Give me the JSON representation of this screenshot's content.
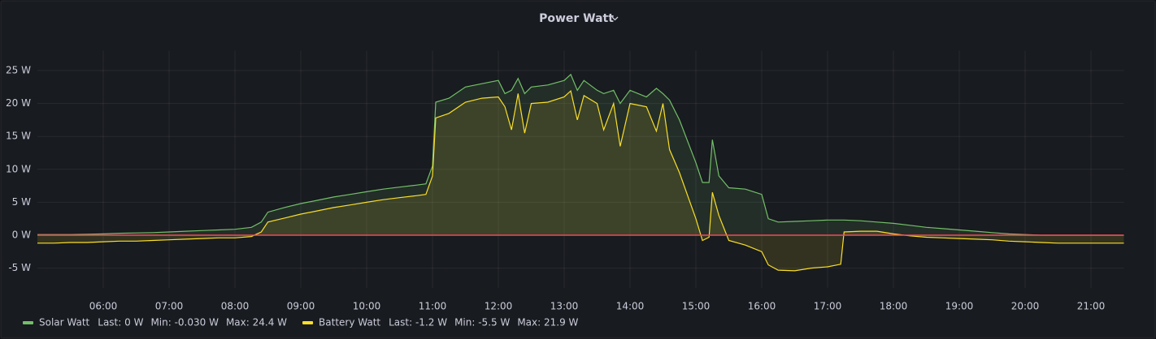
{
  "chart_data": {
    "type": "line",
    "title": "Power Watt",
    "x": [
      5.0,
      5.25,
      5.5,
      5.75,
      6.0,
      6.25,
      6.5,
      6.75,
      7.0,
      7.25,
      7.5,
      7.75,
      8.0,
      8.25,
      8.4,
      8.5,
      8.75,
      9.0,
      9.25,
      9.5,
      9.75,
      10.0,
      10.25,
      10.5,
      10.75,
      10.9,
      11.0,
      11.05,
      11.25,
      11.5,
      11.75,
      12.0,
      12.1,
      12.2,
      12.3,
      12.4,
      12.5,
      12.75,
      13.0,
      13.1,
      13.2,
      13.3,
      13.5,
      13.6,
      13.75,
      13.85,
      14.0,
      14.25,
      14.4,
      14.5,
      14.6,
      14.75,
      15.0,
      15.1,
      15.2,
      15.25,
      15.35,
      15.5,
      15.75,
      16.0,
      16.1,
      16.25,
      16.5,
      16.75,
      17.0,
      17.2,
      17.25,
      17.5,
      17.75,
      18.0,
      18.25,
      18.5,
      18.75,
      19.0,
      19.25,
      19.5,
      19.75,
      20.0,
      20.25,
      20.5,
      21.0,
      21.5
    ],
    "series": [
      {
        "name": "Solar Watt",
        "color": "#73bf69",
        "legend_stats": [
          "Last: 0 W",
          "Min: -0.030 W",
          "Max: 24.4 W"
        ],
        "values": [
          0.1,
          0.1,
          0.1,
          0.15,
          0.2,
          0.3,
          0.35,
          0.4,
          0.5,
          0.6,
          0.7,
          0.8,
          0.9,
          1.2,
          2.0,
          3.5,
          4.2,
          4.8,
          5.3,
          5.8,
          6.2,
          6.6,
          7.0,
          7.3,
          7.6,
          7.8,
          10.5,
          20.2,
          20.8,
          22.5,
          23.0,
          23.5,
          21.5,
          22.0,
          23.8,
          21.5,
          22.5,
          22.8,
          23.5,
          24.4,
          22.0,
          23.5,
          22.0,
          21.5,
          22.0,
          20.0,
          22.0,
          21.0,
          22.3,
          21.5,
          20.5,
          17.5,
          11.0,
          8.0,
          8.0,
          14.5,
          9.0,
          7.2,
          7.0,
          6.2,
          2.5,
          2.0,
          2.1,
          2.2,
          2.3,
          2.3,
          2.3,
          2.2,
          2.0,
          1.8,
          1.5,
          1.2,
          1.0,
          0.8,
          0.6,
          0.4,
          0.2,
          0.1,
          0.0,
          0.0,
          0.0,
          0.0
        ]
      },
      {
        "name": "Battery Watt",
        "color": "#fade2a",
        "legend_stats": [
          "Last: -1.2 W",
          "Min: -5.5 W",
          "Max: 21.9 W"
        ],
        "values": [
          -1.2,
          -1.2,
          -1.1,
          -1.1,
          -1.0,
          -0.9,
          -0.9,
          -0.8,
          -0.7,
          -0.6,
          -0.5,
          -0.4,
          -0.4,
          -0.2,
          0.5,
          2.0,
          2.6,
          3.2,
          3.7,
          4.2,
          4.6,
          5.0,
          5.4,
          5.7,
          6.0,
          6.2,
          9.0,
          17.8,
          18.5,
          20.2,
          20.8,
          21.0,
          19.5,
          16.0,
          21.5,
          15.5,
          20.0,
          20.2,
          21.0,
          21.9,
          17.5,
          21.2,
          20.0,
          16.0,
          20.0,
          13.5,
          20.0,
          19.5,
          15.8,
          20.0,
          13.0,
          9.5,
          2.5,
          -0.8,
          -0.3,
          6.5,
          3.0,
          -0.8,
          -1.5,
          -2.5,
          -4.5,
          -5.3,
          -5.4,
          -5.0,
          -4.8,
          -4.4,
          0.5,
          0.6,
          0.6,
          0.2,
          -0.1,
          -0.3,
          -0.4,
          -0.5,
          -0.6,
          -0.7,
          -0.9,
          -1.0,
          -1.1,
          -1.2,
          -1.2,
          -1.2
        ]
      }
    ],
    "xlim": [
      5.0,
      21.5
    ],
    "xticks": [
      {
        "value": 6,
        "label": "06:00"
      },
      {
        "value": 7,
        "label": "07:00"
      },
      {
        "value": 8,
        "label": "08:00"
      },
      {
        "value": 9,
        "label": "09:00"
      },
      {
        "value": 10,
        "label": "10:00"
      },
      {
        "value": 11,
        "label": "11:00"
      },
      {
        "value": 12,
        "label": "12:00"
      },
      {
        "value": 13,
        "label": "13:00"
      },
      {
        "value": 14,
        "label": "14:00"
      },
      {
        "value": 15,
        "label": "15:00"
      },
      {
        "value": 16,
        "label": "16:00"
      },
      {
        "value": 17,
        "label": "17:00"
      },
      {
        "value": 18,
        "label": "18:00"
      },
      {
        "value": 19,
        "label": "19:00"
      },
      {
        "value": 20,
        "label": "20:00"
      },
      {
        "value": 21,
        "label": "21:00"
      }
    ],
    "ylim": [
      -8,
      28
    ],
    "yticks": [
      {
        "value": -5,
        "label": "-5 W"
      },
      {
        "value": 0,
        "label": "0 W"
      },
      {
        "value": 5,
        "label": "5 W"
      },
      {
        "value": 10,
        "label": "10 W"
      },
      {
        "value": 15,
        "label": "15 W"
      },
      {
        "value": 20,
        "label": "20 W"
      },
      {
        "value": 25,
        "label": "25 W"
      }
    ],
    "grid": true,
    "threshold": {
      "value": 0,
      "color": "#f2495c"
    },
    "fill_opacity": 0.12
  }
}
